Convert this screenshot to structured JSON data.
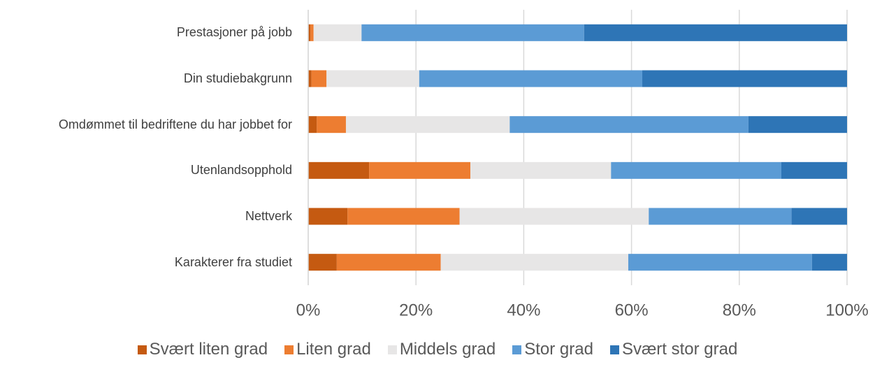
{
  "chart_data": {
    "type": "stacked_barh",
    "categories": [
      "Prestasjoner på jobb",
      "Din studiebakgrunn",
      "Omdømmet til bedriftene du har jobbet for",
      "Utenlandsopphold",
      "Nettverk",
      "Karakterer fra studiet"
    ],
    "series": [
      {
        "name": "Svært liten grad",
        "color": "#c55a11",
        "values": [
          0.4,
          0.6,
          1.6,
          11.3,
          7.3,
          5.3
        ]
      },
      {
        "name": "Liten grad",
        "color": "#ed7d31",
        "values": [
          0.6,
          2.8,
          5.4,
          18.8,
          20.8,
          19.3
        ]
      },
      {
        "name": "Middels grad",
        "color": "#e7e6e6",
        "values": [
          8.9,
          17.2,
          30.4,
          26.1,
          35.1,
          34.8
        ]
      },
      {
        "name": "Stor grad",
        "color": "#5b9bd5",
        "values": [
          41.3,
          41.4,
          44.3,
          31.6,
          26.5,
          34.1
        ]
      },
      {
        "name": "Svært stor grad",
        "color": "#2e75b6",
        "values": [
          48.8,
          38.0,
          18.3,
          12.2,
          10.3,
          6.5
        ]
      }
    ],
    "xlim": [
      0,
      100
    ],
    "xticks": [
      {
        "value": 0,
        "label": "0%"
      },
      {
        "value": 20,
        "label": "20%"
      },
      {
        "value": 40,
        "label": "40%"
      },
      {
        "value": 60,
        "label": "60%"
      },
      {
        "value": 80,
        "label": "80%"
      },
      {
        "value": 100,
        "label": "100%"
      }
    ],
    "grid": true,
    "legend": "bottom"
  }
}
